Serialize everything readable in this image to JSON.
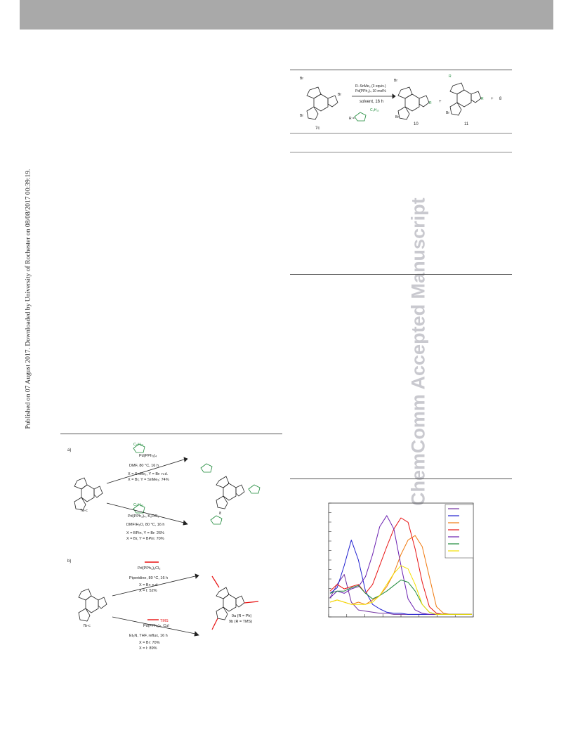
{
  "page": {
    "side_note": "Published on 07 August 2017. Downloaded by University of Rochester on 08/08/2017 00:39:19.",
    "watermark": "ChemComm Accepted Manuscript"
  },
  "scheme_top": {
    "reagent1": "R−SnMe₃ (3 equiv.)",
    "reagent2": "Pd(PPh₃)₄ 10 mol%",
    "reagent3": "solvent, 16 h",
    "start_label": "7c",
    "prod10": "10",
    "prod11": "11",
    "plus1": "+",
    "plus2": "+",
    "tail": "8",
    "r_eq": "R =",
    "c6h13": "C₆H₁₃"
  },
  "scheme_a": {
    "panel": "a)",
    "upper_sub": "C₆H₁₃",
    "upper_cat": "Pd(PPh₃)₄",
    "upper_cond": "DMF, 80 °C, 16 h",
    "upper_y1": "X = SnMe₃, Y = Br: n.d.",
    "upper_y2": "X = Br, Y = SnMe₃: 74%",
    "lower_sub": "C₆H₁₃",
    "lower_cat": "Pd(PPh₃)₄, K₂CO₃",
    "lower_cond": "DMF/H₂O, 80 °C, 16 h",
    "lower_y1": "X = BPin, Y = Br: 26%",
    "lower_y2": "X = Br, Y = BPin: 70%",
    "start_label": "7a-c",
    "product_label": "8"
  },
  "scheme_b": {
    "panel": "b)",
    "upper_cat": "Pd(PPh₃)₂Cl₂",
    "upper_cond": "Piperidine, 80 °C, 16 h",
    "upper_y1": "X = Br: n.d.",
    "upper_y2": "X = I: 52%",
    "lower_reag": "TMS",
    "lower_cat": "Pd(PPh₃)₄, CuI",
    "lower_cond": "Et₃N, THF, reflux, 16 h",
    "lower_y1": "X = Br: 70%",
    "lower_y2": "X = I: 89%",
    "start_label": "7b-c",
    "product_line1": "9a (R = Ph)",
    "product_line2": "9b (R = TMS)"
  },
  "chart_data": {
    "type": "line",
    "title": "",
    "xlabel": "",
    "ylabel": "",
    "note": "Seven unlabeled absorption spectra; series names not legible in image.",
    "x": [
      0,
      10,
      20,
      30,
      40,
      50,
      60,
      70,
      80,
      90,
      100,
      110,
      120,
      130,
      140,
      150,
      160,
      170,
      180,
      190,
      200
    ],
    "xlim": [
      0,
      200
    ],
    "ylim": [
      0,
      1
    ],
    "grid": false,
    "legend_position": "top-right",
    "series": [
      {
        "color": "#7030a0",
        "values": [
          0.16,
          0.28,
          0.37,
          0.12,
          0.05,
          0.04,
          0.03,
          0.02,
          0.02,
          0.01,
          0.01,
          0.01,
          0.01,
          0.01,
          0.01,
          0.01,
          0.01,
          0.01,
          0.01,
          0.01,
          0.01
        ]
      },
      {
        "color": "#1f1fd0",
        "values": [
          0.2,
          0.25,
          0.45,
          0.68,
          0.5,
          0.22,
          0.1,
          0.06,
          0.03,
          0.02,
          0.02,
          0.01,
          0.01,
          0.01,
          0.01,
          0.01,
          0.01,
          0.01,
          0.01,
          0.01,
          0.01
        ]
      },
      {
        "color": "#f07a10",
        "values": [
          0.12,
          0.14,
          0.12,
          0.1,
          0.12,
          0.1,
          0.14,
          0.18,
          0.26,
          0.38,
          0.55,
          0.68,
          0.72,
          0.62,
          0.35,
          0.08,
          0.02,
          0.01,
          0.01,
          0.01,
          0.01
        ]
      },
      {
        "color": "#e81010",
        "values": [
          0.22,
          0.28,
          0.24,
          0.26,
          0.28,
          0.2,
          0.28,
          0.45,
          0.62,
          0.78,
          0.88,
          0.84,
          0.6,
          0.3,
          0.08,
          0.02,
          0.01,
          0.01,
          0.01,
          0.01,
          0.01
        ]
      },
      {
        "color": "#6a1fb0",
        "values": [
          0.16,
          0.22,
          0.2,
          0.24,
          0.26,
          0.35,
          0.55,
          0.8,
          0.9,
          0.78,
          0.45,
          0.15,
          0.05,
          0.02,
          0.01,
          0.01,
          0.01,
          0.01,
          0.01,
          0.01,
          0.01
        ]
      },
      {
        "color": "#1e8a3a",
        "values": [
          0.2,
          0.22,
          0.22,
          0.25,
          0.27,
          0.2,
          0.15,
          0.18,
          0.22,
          0.27,
          0.32,
          0.3,
          0.22,
          0.1,
          0.03,
          0.01,
          0.01,
          0.01,
          0.01,
          0.01,
          0.01
        ]
      },
      {
        "color": "#f4e000",
        "values": [
          0.12,
          0.14,
          0.12,
          0.1,
          0.1,
          0.1,
          0.12,
          0.18,
          0.28,
          0.38,
          0.45,
          0.42,
          0.28,
          0.1,
          0.03,
          0.01,
          0.01,
          0.01,
          0.01,
          0.01,
          0.01
        ]
      }
    ]
  }
}
